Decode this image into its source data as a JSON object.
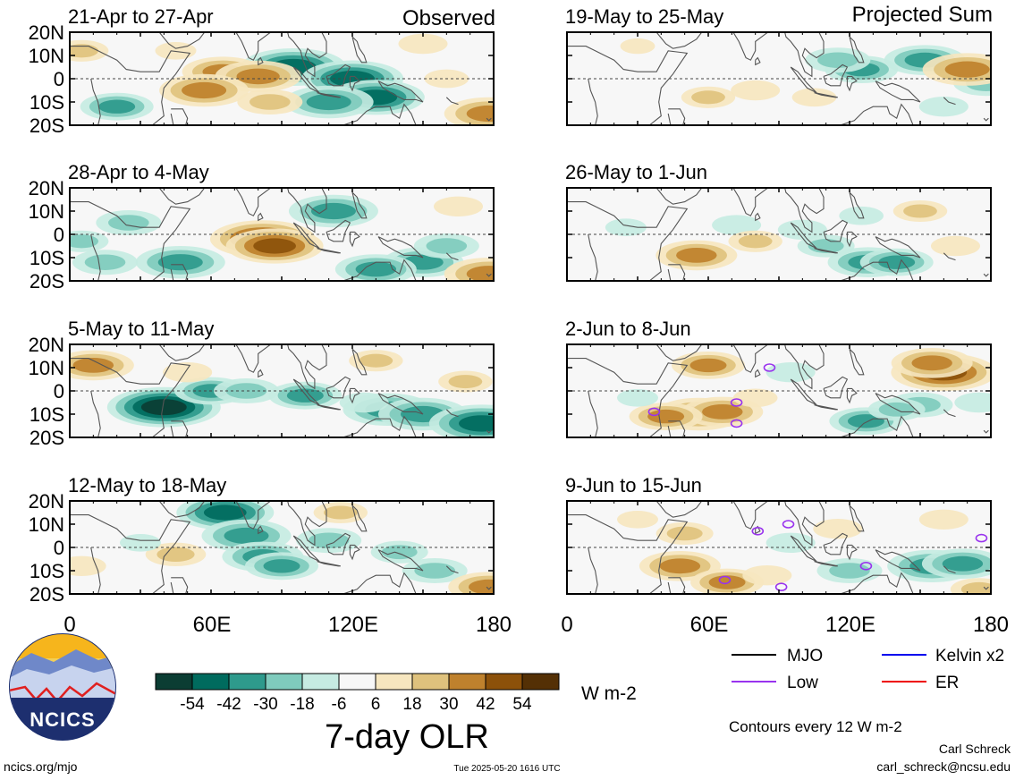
{
  "observed_label": "Observed",
  "projected_label": "Projected Sum",
  "lat_labels": [
    "20N",
    "10N",
    "0",
    "10S",
    "20S"
  ],
  "lon_labels": [
    "0",
    "60E",
    "120E",
    "180"
  ],
  "panels": [
    {
      "title": "21-Apr to 27-Apr",
      "kind": "observed"
    },
    {
      "title": "28-Apr to 4-May",
      "kind": "observed"
    },
    {
      "title": "5-May to 11-May",
      "kind": "observed"
    },
    {
      "title": "12-May to 18-May",
      "kind": "observed"
    },
    {
      "title": "19-May to 25-May",
      "kind": "projected"
    },
    {
      "title": "26-May to 1-Jun",
      "kind": "projected"
    },
    {
      "title": "2-Jun to 8-Jun",
      "kind": "projected"
    },
    {
      "title": "9-Jun to 15-Jun",
      "kind": "projected"
    }
  ],
  "colorbar": {
    "colors": [
      "#0b3d33",
      "#006b5e",
      "#2e9a8c",
      "#7fcbbd",
      "#c6ebe2",
      "#f7f7f7",
      "#f6e6bf",
      "#dfc27d",
      "#bf812d",
      "#8c510a",
      "#543005"
    ],
    "tick_labels": [
      "-54",
      "-42",
      "-30",
      "-18",
      "-6",
      "6",
      "18",
      "30",
      "42",
      "54"
    ],
    "units": "W m-2",
    "title": "7-day OLR"
  },
  "legend": {
    "items": [
      {
        "label": "MJO",
        "color": "#000000"
      },
      {
        "label": "Kelvin x2",
        "color": "#0000ee"
      },
      {
        "label": "Low",
        "color": "#9933ee"
      },
      {
        "label": "ER",
        "color": "#ee0000"
      }
    ],
    "contour_note": "Contours every 12 W m-2"
  },
  "logo": {
    "text": "NCICS"
  },
  "footer": {
    "url": "ncics.org/mjo",
    "timestamp": "Tue 2025-05-20 1616 UTC",
    "author": "Carl Schreck",
    "email": "carl_schreck@ncsu.edu"
  },
  "chart_data": {
    "type": "heatmap",
    "title": "7-day OLR",
    "units": "W m-2",
    "x_range": [
      0,
      180
    ],
    "y_range": [
      -20,
      20
    ],
    "x_ticks": [
      "0",
      "60E",
      "120E",
      "180"
    ],
    "y_ticks": [
      "20N",
      "10N",
      "0",
      "10S",
      "20S"
    ],
    "levels": [
      -54,
      -42,
      -30,
      -18,
      -6,
      6,
      18,
      30,
      42,
      54
    ],
    "anomaly_blobs": [
      [
        [
          95,
          5,
          -50
        ],
        [
          120,
          0,
          -48
        ],
        [
          130,
          -8,
          -45
        ],
        [
          110,
          -10,
          -40
        ],
        [
          20,
          -12,
          -30
        ],
        [
          45,
          12,
          10
        ],
        [
          65,
          3,
          35
        ],
        [
          80,
          1,
          38
        ],
        [
          57,
          -5,
          40
        ],
        [
          85,
          -10,
          25
        ],
        [
          178,
          -15,
          40
        ],
        [
          5,
          12,
          18
        ],
        [
          150,
          15,
          15
        ],
        [
          160,
          0,
          12
        ]
      ],
      [
        [
          82,
          -2,
          50
        ],
        [
          87,
          -5,
          45
        ],
        [
          47,
          -12,
          -40
        ],
        [
          25,
          5,
          -25
        ],
        [
          15,
          -12,
          -25
        ],
        [
          112,
          10,
          -40
        ],
        [
          150,
          -12,
          -35
        ],
        [
          160,
          -5,
          -25
        ],
        [
          178,
          -17,
          40
        ],
        [
          130,
          -15,
          -35
        ],
        [
          5,
          -3,
          -18
        ],
        [
          165,
          12,
          15
        ]
      ],
      [
        [
          40,
          -7,
          -55
        ],
        [
          60,
          0,
          -30
        ],
        [
          75,
          0,
          -25
        ],
        [
          100,
          -2,
          -30
        ],
        [
          135,
          -8,
          -40
        ],
        [
          150,
          -10,
          -40
        ],
        [
          175,
          -14,
          -50
        ],
        [
          10,
          11,
          35
        ],
        [
          50,
          8,
          15
        ],
        [
          130,
          13,
          18
        ],
        [
          168,
          4,
          18
        ],
        [
          125,
          -5,
          -15
        ]
      ],
      [
        [
          66,
          15,
          -45
        ],
        [
          75,
          5,
          -40
        ],
        [
          82,
          -4,
          -35
        ],
        [
          90,
          -8,
          -30
        ],
        [
          110,
          3,
          -25
        ],
        [
          140,
          -2,
          -20
        ],
        [
          155,
          -10,
          -25
        ],
        [
          178,
          -17,
          35
        ],
        [
          45,
          -3,
          22
        ],
        [
          5,
          -8,
          15
        ],
        [
          115,
          15,
          18
        ],
        [
          30,
          2,
          -10
        ]
      ],
      [
        [
          125,
          4,
          -30
        ],
        [
          115,
          8,
          -25
        ],
        [
          152,
          8,
          -35
        ],
        [
          178,
          -2,
          -25
        ],
        [
          170,
          4,
          40
        ],
        [
          60,
          -8,
          18
        ],
        [
          80,
          -5,
          15
        ],
        [
          105,
          -8,
          12
        ],
        [
          30,
          14,
          6
        ],
        [
          160,
          -12,
          -15
        ]
      ],
      [
        [
          128,
          -12,
          -35
        ],
        [
          140,
          -12,
          -30
        ],
        [
          110,
          -5,
          -20
        ],
        [
          100,
          2,
          -15
        ],
        [
          55,
          -9,
          35
        ],
        [
          72,
          4,
          -15
        ],
        [
          80,
          -3,
          18
        ],
        [
          150,
          10,
          18
        ],
        [
          165,
          -5,
          15
        ],
        [
          125,
          8,
          -12
        ],
        [
          25,
          3,
          -10
        ]
      ],
      [
        [
          56,
          -10,
          40
        ],
        [
          66,
          -9,
          35
        ],
        [
          42,
          -11,
          30
        ],
        [
          60,
          11,
          30
        ],
        [
          160,
          8,
          50
        ],
        [
          155,
          12,
          35
        ],
        [
          127,
          -13,
          -30
        ],
        [
          150,
          -6,
          -25
        ],
        [
          140,
          -8,
          -20
        ],
        [
          95,
          8,
          -15
        ],
        [
          80,
          -3,
          12
        ],
        [
          30,
          -3,
          -10
        ],
        [
          175,
          -5,
          -15
        ]
      ],
      [
        [
          155,
          -8,
          -40
        ],
        [
          168,
          -7,
          -35
        ],
        [
          120,
          -10,
          -25
        ],
        [
          95,
          2,
          -15
        ],
        [
          48,
          -8,
          35
        ],
        [
          68,
          -15,
          30
        ],
        [
          50,
          6,
          20
        ],
        [
          115,
          8,
          15
        ],
        [
          160,
          12,
          15
        ],
        [
          30,
          12,
          10
        ],
        [
          85,
          -12,
          15
        ],
        [
          175,
          -18,
          20
        ]
      ]
    ],
    "contours": [
      {
        "panel": 7,
        "type": "Low",
        "lon": 72,
        "lat": -5
      },
      {
        "panel": 7,
        "type": "Low",
        "lon": 72,
        "lat": -14
      },
      {
        "panel": 7,
        "type": "Low",
        "lon": 37,
        "lat": -9
      },
      {
        "panel": 7,
        "type": "Low",
        "lon": 86,
        "lat": 10
      },
      {
        "panel": 8,
        "type": "Low",
        "lon": 81,
        "lat": 7
      },
      {
        "panel": 8,
        "type": "Low",
        "lon": 94,
        "lat": 10
      },
      {
        "panel": 8,
        "type": "Low",
        "lon": 91,
        "lat": -17
      },
      {
        "panel": 8,
        "type": "Low",
        "lon": 67,
        "lat": -14
      },
      {
        "panel": 8,
        "type": "Low",
        "lon": 176,
        "lat": 4
      },
      {
        "panel": 8,
        "type": "Low",
        "lon": 127,
        "lat": -8
      }
    ]
  }
}
